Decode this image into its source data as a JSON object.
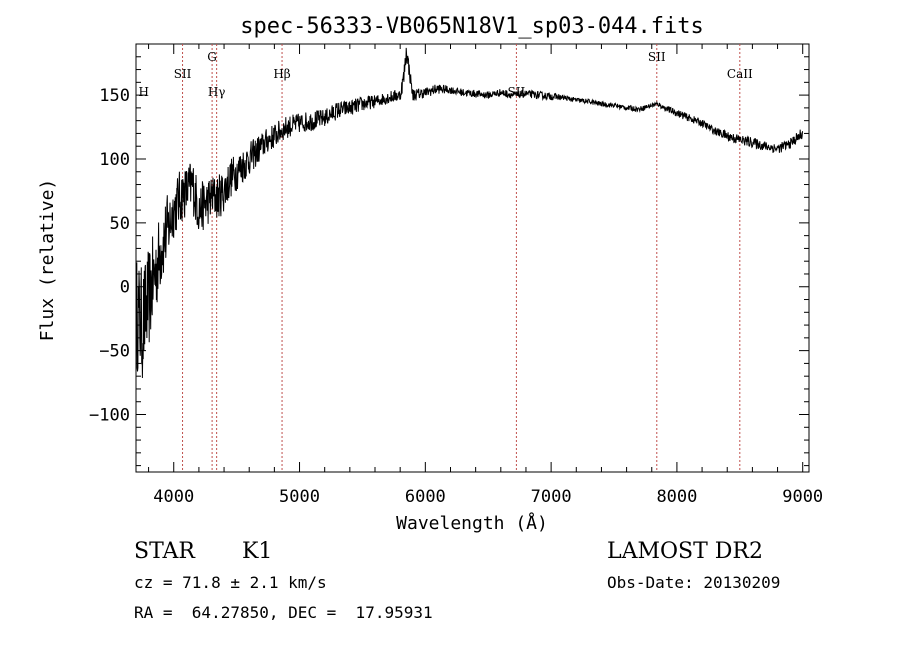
{
  "chart_data": {
    "type": "line",
    "title": "spec-56333-VB065N18V1_sp03-044.fits",
    "xlabel": "Wavelength (Å)",
    "ylabel": "Flux (relative)",
    "xlim": [
      3700,
      9050
    ],
    "ylim": [
      -145,
      190
    ],
    "xticks": [
      4000,
      5000,
      6000,
      7000,
      8000,
      9000
    ],
    "xtick_labels": [
      "4000",
      "5000",
      "6000",
      "7000",
      "8000",
      "9000"
    ],
    "yticks": [
      -100,
      -50,
      0,
      50,
      100,
      150
    ],
    "ytick_labels": [
      "−100",
      "−50",
      "0",
      "50",
      "100",
      "150"
    ],
    "grid": false,
    "series": [
      {
        "name": "spectrum",
        "x": [
          3700,
          3750,
          3800,
          3850,
          3900,
          3950,
          4000,
          4050,
          4100,
          4150,
          4200,
          4250,
          4300,
          4350,
          4400,
          4450,
          4500,
          4550,
          4600,
          4650,
          4700,
          4750,
          4800,
          4850,
          4900,
          5000,
          5100,
          5200,
          5300,
          5400,
          5500,
          5600,
          5700,
          5800,
          5830,
          5850,
          5900,
          6000,
          6100,
          6200,
          6300,
          6400,
          6500,
          6600,
          6700,
          6800,
          6900,
          7000,
          7100,
          7200,
          7300,
          7400,
          7500,
          7600,
          7700,
          7800,
          7850,
          7900,
          8000,
          8100,
          8200,
          8300,
          8400,
          8500,
          8600,
          8700,
          8800,
          8900,
          9000
        ],
        "y": [
          -20,
          -30,
          -10,
          10,
          30,
          45,
          60,
          70,
          75,
          80,
          60,
          65,
          70,
          70,
          75,
          85,
          90,
          95,
          100,
          105,
          110,
          115,
          118,
          122,
          125,
          128,
          130,
          132,
          138,
          140,
          143,
          145,
          148,
          150,
          165,
          185,
          150,
          152,
          155,
          154,
          152,
          151,
          150,
          152,
          150,
          151,
          150,
          149,
          148,
          146,
          145,
          143,
          142,
          140,
          139,
          142,
          143,
          140,
          136,
          132,
          128,
          122,
          118,
          115,
          113,
          110,
          108,
          112,
          120
        ],
        "noise": [
          45,
          45,
          40,
          35,
          30,
          28,
          22,
          22,
          20,
          22,
          20,
          20,
          18,
          18,
          17,
          16,
          15,
          14,
          13,
          12,
          11,
          10,
          10,
          9,
          9,
          8,
          8,
          7,
          7,
          6,
          6,
          5,
          5,
          5,
          8,
          8,
          5,
          4,
          4,
          3,
          3,
          3,
          3,
          3,
          3,
          3,
          3,
          3,
          2,
          2,
          2,
          2,
          2,
          2,
          2,
          2,
          2,
          2,
          3,
          3,
          3,
          3,
          4,
          4,
          4,
          4,
          4,
          4,
          5
        ]
      }
    ],
    "lines": [
      {
        "wave": 4070,
        "label": "SII",
        "level": "upper"
      },
      {
        "wave": 4305,
        "label": "G",
        "level": "top"
      },
      {
        "wave": 4341,
        "label": "Hγ",
        "level": "lower"
      },
      {
        "wave": 4861,
        "label": "Hβ",
        "level": "upper"
      },
      {
        "wave": 6724,
        "label": "SII",
        "level": "lower"
      },
      {
        "wave": 7840,
        "label": "SII",
        "level": "top"
      },
      {
        "wave": 8500,
        "label": "CaII",
        "level": "upper"
      }
    ],
    "edge_labels": [
      {
        "wave": 3720,
        "label": "H",
        "level": "lower"
      }
    ]
  },
  "object": {
    "class": "STAR",
    "subclass": "K1"
  },
  "redshift": {
    "text": "cz = 71.8 ± 2.1 km/s"
  },
  "coords": {
    "text": "RA =  64.27850, DEC =  17.95931"
  },
  "survey": {
    "name": "LAMOST DR2"
  },
  "obs": {
    "text": "Obs-Date: 20130209"
  },
  "colors": {
    "axis": "#000000",
    "spectrum": "#000000",
    "line_marker": "#c0504d"
  }
}
